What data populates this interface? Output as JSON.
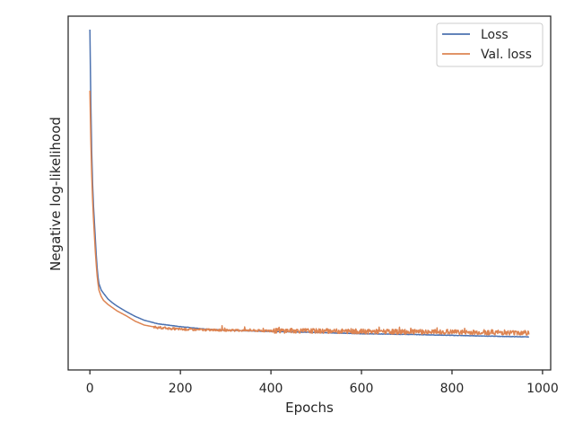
{
  "chart_data": {
    "type": "line",
    "xlabel": "Epochs",
    "ylabel": "Negative log-likelihood",
    "xlim": [
      -48,
      1018
    ],
    "ylim": [
      0,
      100
    ],
    "xticks": [
      0,
      200,
      400,
      600,
      800,
      1000
    ],
    "xtick_labels": [
      "0",
      "200",
      "400",
      "600",
      "800",
      "1000"
    ],
    "grid": false,
    "legend_position": "top-right",
    "series": [
      {
        "name": "Loss",
        "color": "#4c72b0",
        "x": [
          0,
          2,
          4,
          6,
          8,
          10,
          12,
          14,
          16,
          18,
          20,
          25,
          30,
          40,
          50,
          60,
          80,
          100,
          120,
          150,
          200,
          250,
          300,
          400,
          500,
          600,
          700,
          800,
          900,
          970
        ],
        "y": [
          100,
          78,
          62,
          52,
          45,
          40,
          35,
          30,
          26,
          23,
          21,
          19,
          18,
          16.2,
          15,
          14,
          12.3,
          10.8,
          9.6,
          8.5,
          7.6,
          6.9,
          6.5,
          6.1,
          5.8,
          5.4,
          5.2,
          4.9,
          4.6,
          4.4
        ]
      },
      {
        "name": "Val. loss",
        "color": "#dd8452",
        "x": [
          0,
          2,
          4,
          6,
          8,
          10,
          12,
          14,
          16,
          18,
          20,
          25,
          30,
          40,
          50,
          60,
          80,
          100,
          120,
          150,
          200,
          250,
          300,
          350,
          400,
          450,
          500,
          550,
          600,
          650,
          700,
          750,
          800,
          850,
          900,
          970
        ],
        "y": [
          81,
          66,
          55,
          47,
          41,
          36,
          31,
          27,
          23.5,
          21,
          19,
          17,
          15.8,
          14.5,
          13.5,
          12.5,
          11,
          9.3,
          8.1,
          7.3,
          6.8,
          6.6,
          6.5,
          6.4,
          6.3,
          6.35,
          6.25,
          6.2,
          6.1,
          6.05,
          6.0,
          5.95,
          5.9,
          5.85,
          5.8,
          5.7
        ]
      }
    ]
  }
}
